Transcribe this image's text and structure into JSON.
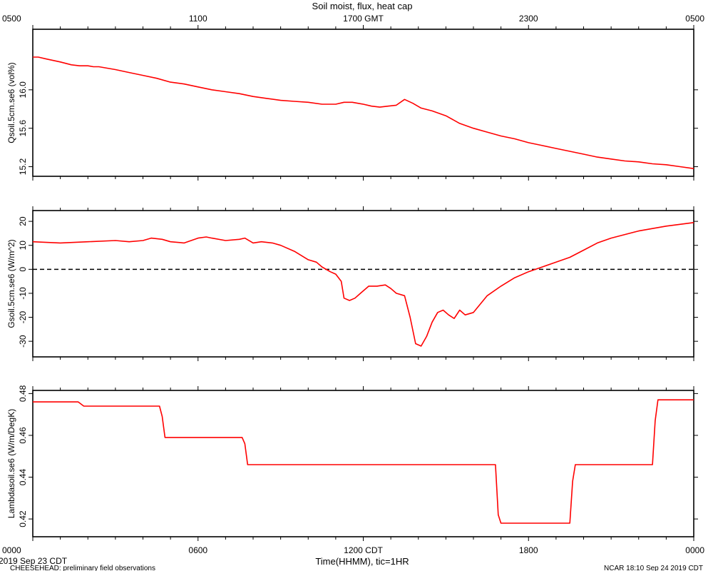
{
  "title": "Soil moist, flux, heat cap",
  "top_axis": {
    "ticks": [
      "0500",
      "1100",
      "1700 GMT",
      "2300",
      "0500"
    ]
  },
  "bottom_axis": {
    "ticks": [
      "0000",
      "0600",
      "1200 CDT",
      "1800",
      "0000"
    ],
    "label": "Time(HHMM), tic=1HR"
  },
  "footer": {
    "date": "2019 Sep 23 CDT",
    "project": "CHEESEHEAD: preliminary field observations",
    "stamp": "NCAR 18:10 Sep 24 2019 CDT"
  },
  "colors": {
    "series": "#ff0000",
    "axes": "#000000",
    "zero_line": "#000000"
  },
  "chart_data": [
    {
      "type": "line",
      "ylabel": "Qsoil.5cm.se6 (vol%)",
      "ylim": [
        15.1,
        16.63
      ],
      "yticks": [
        15.2,
        15.6,
        16.0
      ],
      "ytick_labels": [
        "15.2",
        "15.6",
        "16.0"
      ],
      "xlim": [
        0,
        24
      ],
      "series": [
        {
          "x": [
            0,
            0.2,
            0.5,
            1.0,
            1.4,
            1.7,
            2.0,
            2.2,
            2.4,
            3.0,
            3.5,
            4.0,
            4.5,
            5.0,
            5.5,
            6.0,
            6.5,
            7.0,
            7.5,
            8.0,
            8.5,
            9.0,
            9.5,
            10.0,
            10.5,
            11.0,
            11.3,
            11.6,
            12.0,
            12.3,
            12.6,
            12.9,
            13.2,
            13.5,
            13.8,
            14.1,
            14.5,
            15.0,
            15.5,
            16.0,
            16.5,
            17.0,
            17.5,
            18.0,
            18.5,
            19.0,
            19.5,
            20.0,
            20.5,
            21.0,
            21.5,
            22.0,
            22.5,
            23.0,
            23.5,
            24.0
          ],
          "values": [
            16.34,
            16.34,
            16.32,
            16.29,
            16.26,
            16.25,
            16.25,
            16.24,
            16.24,
            16.21,
            16.18,
            16.15,
            16.12,
            16.08,
            16.06,
            16.03,
            16.0,
            15.98,
            15.96,
            15.93,
            15.91,
            15.89,
            15.88,
            15.87,
            15.85,
            15.85,
            15.87,
            15.87,
            15.85,
            15.83,
            15.82,
            15.83,
            15.84,
            15.9,
            15.86,
            15.81,
            15.78,
            15.73,
            15.65,
            15.6,
            15.56,
            15.52,
            15.49,
            15.45,
            15.42,
            15.39,
            15.36,
            15.33,
            15.3,
            15.28,
            15.26,
            15.25,
            15.23,
            15.22,
            15.2,
            15.18
          ]
        }
      ]
    },
    {
      "type": "line",
      "ylabel": "Gsoil.5cm.se6 (W/m^2)",
      "ylim": [
        -36.5,
        24.5
      ],
      "yticks": [
        -30,
        -20,
        -10,
        0,
        10,
        20
      ],
      "ytick_labels": [
        "-30",
        "-20",
        "-10",
        "0",
        "10",
        "20"
      ],
      "zero_line": true,
      "xlim": [
        0,
        24
      ],
      "series": [
        {
          "x": [
            0,
            1,
            2,
            3,
            3.5,
            4,
            4.3,
            4.7,
            5.0,
            5.5,
            6.0,
            6.3,
            6.5,
            7.0,
            7.5,
            7.7,
            8.0,
            8.3,
            8.7,
            9.0,
            9.5,
            10.0,
            10.3,
            10.5,
            10.8,
            11.0,
            11.2,
            11.3,
            11.5,
            11.7,
            11.9,
            12.2,
            12.5,
            12.8,
            13.0,
            13.2,
            13.5,
            13.7,
            13.9,
            14.1,
            14.3,
            14.5,
            14.7,
            14.9,
            15.1,
            15.3,
            15.5,
            15.7,
            16.0,
            16.5,
            17.0,
            17.5,
            18.0,
            18.5,
            19.0,
            19.5,
            20.0,
            20.5,
            21.0,
            22.0,
            23.0,
            24.0
          ],
          "values": [
            11.5,
            11.0,
            11.5,
            12.0,
            11.5,
            12.0,
            13.0,
            12.5,
            11.5,
            11.0,
            13.0,
            13.5,
            13.0,
            12.0,
            12.5,
            13.0,
            11.0,
            11.5,
            11.0,
            10.0,
            7.5,
            4.0,
            3.0,
            1.0,
            -1.0,
            -2.0,
            -5.0,
            -12.0,
            -13.0,
            -12.0,
            -10.0,
            -7.0,
            -7.0,
            -6.5,
            -8.0,
            -10.0,
            -11.0,
            -20.0,
            -31.0,
            -32.0,
            -28.0,
            -22.0,
            -18.0,
            -17.0,
            -19.0,
            -20.5,
            -17.0,
            -19.0,
            -18.0,
            -11.0,
            -7.0,
            -3.5,
            -1.0,
            1.0,
            3.0,
            5.0,
            8.0,
            11.0,
            13.0,
            16.0,
            18.0,
            19.5
          ]
        }
      ]
    },
    {
      "type": "line",
      "ylabel": "Lambdasoil.se6 (W/m/DegK)",
      "ylim": [
        0.4115,
        0.4815
      ],
      "yticks": [
        0.42,
        0.44,
        0.46,
        0.48
      ],
      "ytick_labels": [
        "0.42",
        "0.44",
        "0.46",
        "0.48"
      ],
      "xlim": [
        0,
        24
      ],
      "series": [
        {
          "x": [
            0,
            1.65,
            1.85,
            4.6,
            4.7,
            4.8,
            7.6,
            7.7,
            7.8,
            16.8,
            16.9,
            17.0,
            19.5,
            19.6,
            19.7,
            22.5,
            22.6,
            22.7,
            24.0
          ],
          "values": [
            0.476,
            0.476,
            0.474,
            0.474,
            0.469,
            0.459,
            0.459,
            0.456,
            0.446,
            0.446,
            0.422,
            0.418,
            0.418,
            0.438,
            0.446,
            0.446,
            0.467,
            0.477,
            0.477
          ]
        }
      ]
    }
  ]
}
